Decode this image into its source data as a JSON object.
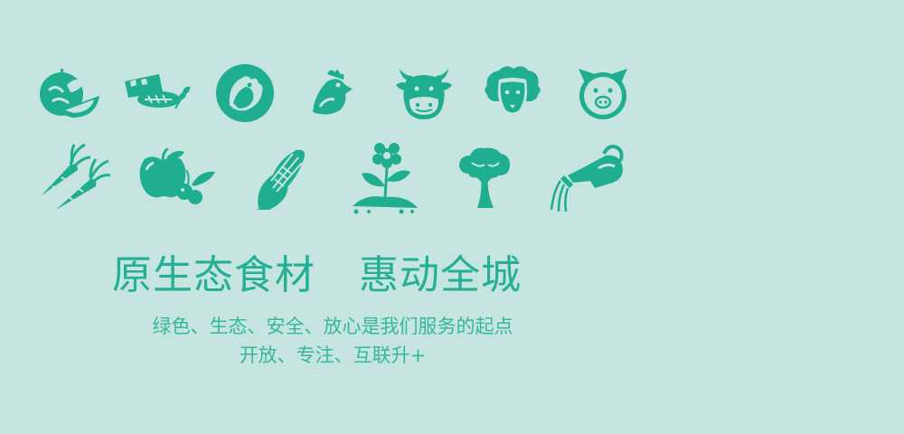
{
  "colors": {
    "background": "#c6e4e0",
    "accent": "#1fae8f"
  },
  "icons_row1": [
    "watermelon-icon",
    "bread-wheat-icon",
    "chicken-badge-icon",
    "chicken-head-icon",
    "cow-icon",
    "sheep-icon",
    "pig-icon"
  ],
  "icons_row2": [
    "carrots-icon",
    "apple-berries-icon",
    "corn-icon",
    "flower-sprout-icon",
    "tree-icon",
    "watering-can-icon"
  ],
  "headline": {
    "part1": "原生态食材",
    "part2": "惠动全城"
  },
  "tagline": {
    "line1": "绿色、生态、安全、放心是我们服务的起点",
    "line2": "开放、专注、互联升+"
  }
}
